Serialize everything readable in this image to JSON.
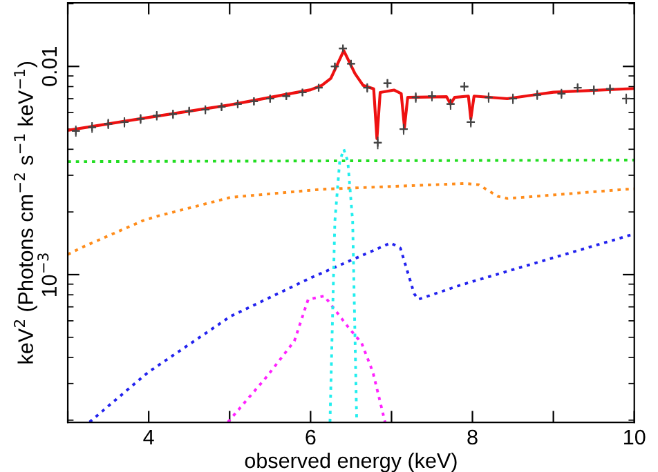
{
  "chart_data": {
    "type": "line",
    "xlabel": "observed energy (keV)",
    "ylabel": "keV$^{2}$ (Photons cm$^{−2}$ s$^{−1}$ keV$^{−1}$)",
    "log": "y",
    "xlim": [
      3,
      10
    ],
    "xticks": [
      {
        "value": 3,
        "label": null
      },
      4,
      {
        "value": 5,
        "label": null
      },
      6,
      {
        "value": 7,
        "label": null
      },
      8,
      {
        "value": 9,
        "label": null
      },
      10
    ],
    "ylim": [
      0.000195,
      0.0202
    ],
    "yticks": [
      {
        "value": 0.001,
        "label": "10$^{−3}$"
      },
      0.01
    ],
    "grid": false,
    "legend": false,
    "series": [
      {
        "type": "scatter",
        "color": "#444444",
        "marker": "cross",
        "x": [
          3.1,
          3.3,
          3.5,
          3.7,
          3.9,
          4.1,
          4.3,
          4.5,
          4.7,
          4.9,
          5.1,
          5.3,
          5.5,
          5.7,
          5.9,
          6.1,
          6.3,
          6.4,
          6.5,
          6.7,
          6.83,
          6.95,
          7.15,
          7.3,
          7.5,
          7.73,
          7.9,
          7.98,
          8.2,
          8.5,
          8.8,
          9.1,
          9.3,
          9.5,
          9.7,
          9.9
        ],
        "values": [
          0.0049,
          0.0051,
          0.0053,
          0.0054,
          0.0056,
          0.0058,
          0.0059,
          0.0061,
          0.0062,
          0.0064,
          0.0066,
          0.0068,
          0.007,
          0.0072,
          0.0075,
          0.0079,
          0.01,
          0.0122,
          0.0103,
          0.0079,
          0.0043,
          0.0083,
          0.005,
          0.0071,
          0.0072,
          0.0066,
          0.008,
          0.0054,
          0.0071,
          0.007,
          0.0073,
          0.0074,
          0.0079,
          0.0077,
          0.0078,
          0.007
        ],
        "errors": [
          0.0003,
          0.0003,
          0.0003,
          0.0003,
          0.0003,
          0.0003,
          0.0003,
          0.0003,
          0.0003,
          0.0003,
          0.0003,
          0.0003,
          0.0003,
          0.0003,
          0.0003,
          0.0003,
          0.0004,
          0.0004,
          0.0004,
          0.0004,
          0.0003,
          0.0004,
          0.0003,
          0.0004,
          0.0004,
          0.0004,
          0.0004,
          0.0003,
          0.0004,
          0.0004,
          0.0004,
          0.0004,
          0.0004,
          0.0004,
          0.0004,
          0.0004
        ],
        "xerrors": [
          0.05,
          0.05,
          0.05,
          0.05,
          0.05,
          0.05,
          0.05,
          0.05,
          0.05,
          0.05,
          0.05,
          0.05,
          0.05,
          0.05,
          0.05,
          0.05,
          0.05,
          0.05,
          0.05,
          0.05,
          0.05,
          0.05,
          0.05,
          0.05,
          0.05,
          0.05,
          0.05,
          0.05,
          0.05,
          0.05,
          0.05,
          0.05,
          0.05,
          0.05,
          0.05,
          0.05
        ]
      },
      {
        "color": "#ee1111",
        "line_style": "solid",
        "x": [
          3,
          4,
          5,
          6,
          6.14,
          6.25,
          6.41,
          6.55,
          6.65,
          6.78,
          6.82,
          6.86,
          7.03,
          7.12,
          7.16,
          7.2,
          7.68,
          7.73,
          7.78,
          7.95,
          7.98,
          8.02,
          8.43,
          9,
          10
        ],
        "values": [
          0.00493,
          0.00569,
          0.00653,
          0.00772,
          0.00811,
          0.00876,
          0.0119,
          0.00922,
          0.0081,
          0.0078,
          0.0045,
          0.0075,
          0.0077,
          0.0074,
          0.0051,
          0.0071,
          0.00715,
          0.0066,
          0.0071,
          0.0072,
          0.0056,
          0.0072,
          0.007,
          0.00752,
          0.00783
        ]
      },
      {
        "color": "#22dd22",
        "line_style": "dotted",
        "x": [
          3,
          10
        ],
        "values": [
          0.00349,
          0.00355
        ]
      },
      {
        "color": "#ff8c1a",
        "line_style": "dotted",
        "x": [
          3,
          3.19,
          3.92,
          4.09,
          5.01,
          6.14,
          7.91,
          8.08,
          8.31,
          8.43,
          9.9,
          10
        ],
        "values": [
          0.00125,
          0.00136,
          0.00181,
          0.0019,
          0.00235,
          0.00257,
          0.00274,
          0.0027,
          0.00238,
          0.00232,
          0.00257,
          0.00258
        ]
      },
      {
        "color": "#2222ee",
        "line_style": "dotted",
        "x": [
          3.27,
          3.99,
          5.01,
          5.99,
          6.99,
          7.11,
          7.28,
          7.33,
          7.85,
          9.98
        ],
        "values": [
          0.000196,
          0.000339,
          0.00063,
          0.00096,
          0.00142,
          0.00134,
          0.00081,
          0.00076,
          0.00089,
          0.00156
        ]
      },
      {
        "color": "#ff22ff",
        "line_style": "dotted",
        "x": [
          4.98,
          5.46,
          5.8,
          5.97,
          6.17,
          6.48,
          6.63,
          6.77,
          6.92
        ],
        "values": [
          0.000196,
          0.000324,
          0.00048,
          0.00076,
          0.00079,
          0.00055,
          0.00047,
          0.00034,
          0.000196
        ]
      },
      {
        "color": "#22eeee",
        "line_style": "dotted",
        "x": [
          6.24,
          6.3,
          6.36,
          6.41,
          6.46,
          6.52,
          6.57
        ],
        "values": [
          0.000196,
          0.0018,
          0.0035,
          0.004,
          0.0035,
          0.0018,
          0.000196
        ]
      }
    ]
  }
}
